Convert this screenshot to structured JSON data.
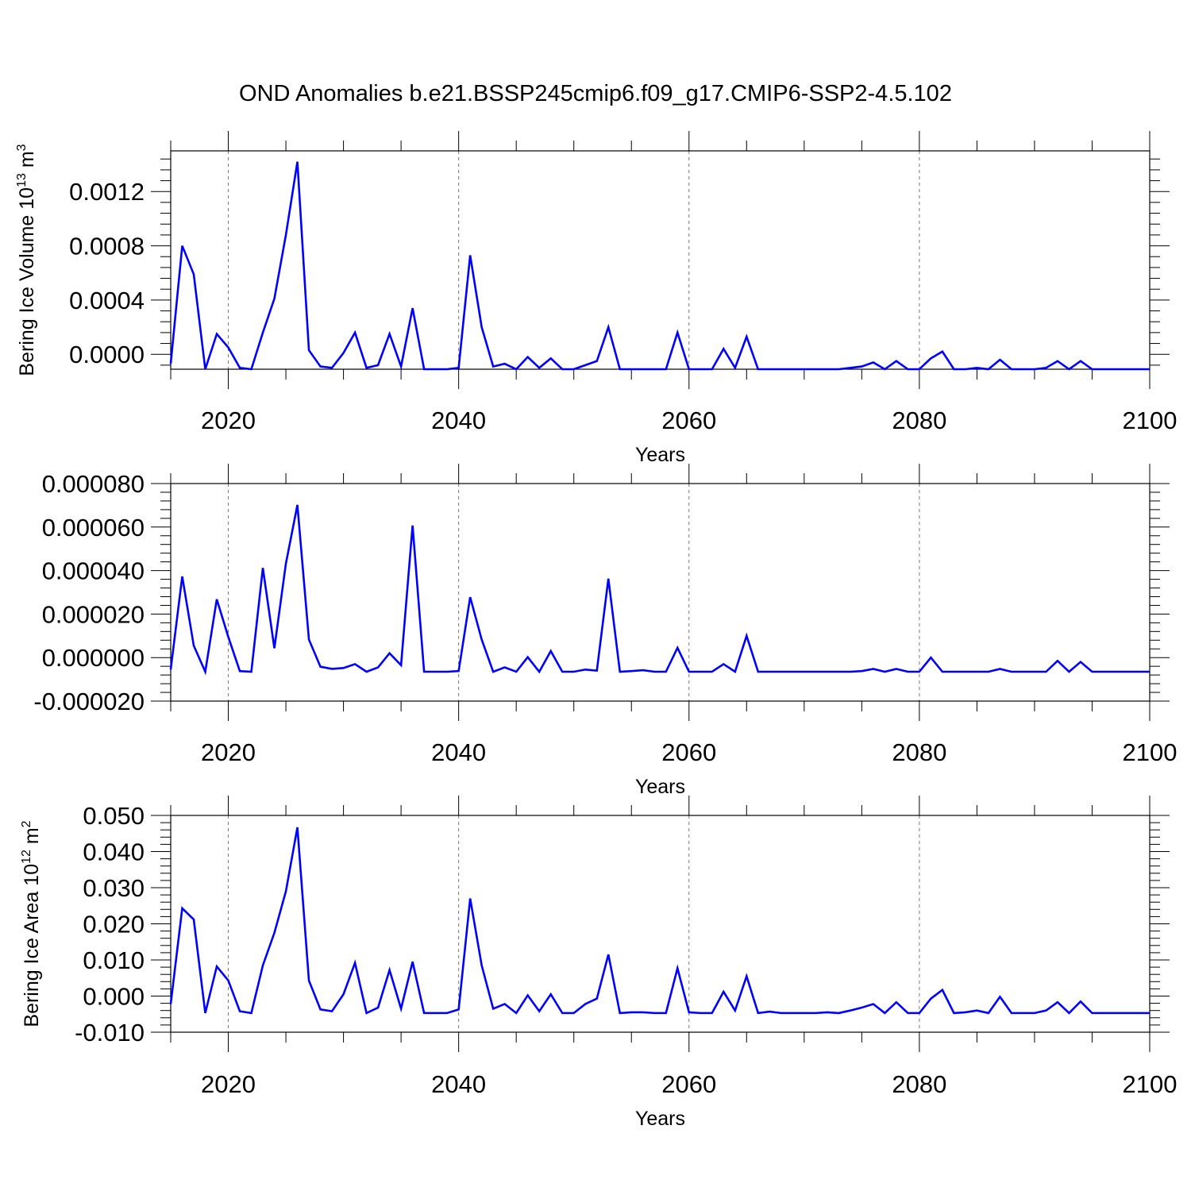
{
  "title": "OND Anomalies b.e21.BSSP245cmip6.f09_g17.CMIP6-SSP2-4.5.102",
  "colors": {
    "line": "#0000ff",
    "axis": "#000000",
    "grid": "#777777",
    "background": "#ffffff"
  },
  "chart_data": [
    {
      "type": "line",
      "xlabel": "Years",
      "ylabel": {
        "base": "Bering Ice Volume 10",
        "exponent": "13",
        "unit": " m",
        "unit_exponent": "3"
      },
      "xlim": [
        2015,
        2100
      ],
      "ylim": [
        -0.00011,
        0.0015
      ],
      "xticks": [
        2020,
        2040,
        2060,
        2080,
        2100
      ],
      "xtick_labels": [
        "2020",
        "2040",
        "2060",
        "2080",
        "2100"
      ],
      "yticks": [
        0.0,
        0.0004,
        0.0008,
        0.0012
      ],
      "ytick_labels": [
        "0.0000",
        "0.0004",
        "0.0008",
        "0.0012"
      ],
      "grid": "vertical dashed at major x ticks",
      "x": [
        2015,
        2016,
        2017,
        2018,
        2019,
        2020,
        2021,
        2022,
        2023,
        2024,
        2025,
        2026,
        2027,
        2028,
        2029,
        2030,
        2031,
        2032,
        2033,
        2034,
        2035,
        2036,
        2037,
        2038,
        2039,
        2040,
        2041,
        2042,
        2043,
        2044,
        2045,
        2046,
        2047,
        2048,
        2049,
        2050,
        2051,
        2052,
        2053,
        2054,
        2055,
        2056,
        2057,
        2058,
        2059,
        2060,
        2061,
        2062,
        2063,
        2064,
        2065,
        2066,
        2067,
        2068,
        2069,
        2070,
        2071,
        2072,
        2073,
        2074,
        2075,
        2076,
        2077,
        2078,
        2079,
        2080,
        2081,
        2082,
        2083,
        2084,
        2085,
        2086,
        2087,
        2088,
        2089,
        2090,
        2091,
        2092,
        2093,
        2094,
        2095,
        2096,
        2097,
        2098,
        2099,
        2100
      ],
      "series": [
        {
          "values": [
            -7e-05,
            0.0008,
            0.00059,
            -0.00011,
            0.00015,
            5e-05,
            -0.0001,
            -0.00011,
            0.00016,
            0.00041,
            0.00088,
            0.00142,
            3e-05,
            -9e-05,
            -0.0001,
            1e-05,
            0.00016,
            -0.0001,
            -8e-05,
            0.00015,
            -9e-05,
            0.00034,
            -0.00011,
            -0.00011,
            -0.00011,
            -0.0001,
            0.00073,
            0.0002,
            -9e-05,
            -7e-05,
            -0.00011,
            -2e-05,
            -0.0001,
            -3e-05,
            -0.00011,
            -0.00011,
            -8e-05,
            -5e-05,
            0.0002,
            -0.00011,
            -0.00011,
            -0.00011,
            -0.00011,
            -0.00011,
            0.00016,
            -0.00011,
            -0.00011,
            -0.00011,
            4e-05,
            -0.0001,
            0.00013,
            -0.00011,
            -0.00011,
            -0.00011,
            -0.00011,
            -0.00011,
            -0.00011,
            -0.00011,
            -0.00011,
            -0.0001,
            -9e-05,
            -6e-05,
            -0.00011,
            -5e-05,
            -0.00011,
            -0.00011,
            -3e-05,
            2e-05,
            -0.00011,
            -0.00011,
            -0.0001,
            -0.00011,
            -4e-05,
            -0.00011,
            -0.00011,
            -0.00011,
            -0.0001,
            -5e-05,
            -0.00011,
            -5e-05,
            -0.00011,
            -0.00011,
            -0.00011,
            -0.00011,
            -0.00011,
            -0.00011
          ]
        }
      ]
    },
    {
      "type": "line",
      "xlabel": "Years",
      "ylabel": null,
      "xlim": [
        2015,
        2100
      ],
      "ylim": [
        -2e-05,
        8e-05
      ],
      "xticks": [
        2020,
        2040,
        2060,
        2080,
        2100
      ],
      "xtick_labels": [
        "2020",
        "2040",
        "2060",
        "2080",
        "2100"
      ],
      "yticks": [
        -2e-05,
        0.0,
        2e-05,
        4e-05,
        6e-05,
        8e-05
      ],
      "ytick_labels": [
        "-0.000020",
        "0.000000",
        "0.000020",
        "0.000040",
        "0.000060",
        "0.000080"
      ],
      "grid": "vertical dashed at major x ticks",
      "x": [
        2015,
        2016,
        2017,
        2018,
        2019,
        2020,
        2021,
        2022,
        2023,
        2024,
        2025,
        2026,
        2027,
        2028,
        2029,
        2030,
        2031,
        2032,
        2033,
        2034,
        2035,
        2036,
        2037,
        2038,
        2039,
        2040,
        2041,
        2042,
        2043,
        2044,
        2045,
        2046,
        2047,
        2048,
        2049,
        2050,
        2051,
        2052,
        2053,
        2054,
        2055,
        2056,
        2057,
        2058,
        2059,
        2060,
        2061,
        2062,
        2063,
        2064,
        2065,
        2066,
        2067,
        2068,
        2069,
        2070,
        2071,
        2072,
        2073,
        2074,
        2075,
        2076,
        2077,
        2078,
        2079,
        2080,
        2081,
        2082,
        2083,
        2084,
        2085,
        2086,
        2087,
        2088,
        2089,
        2090,
        2091,
        2092,
        2093,
        2094,
        2095,
        2096,
        2097,
        2098,
        2099,
        2100
      ],
      "series": [
        {
          "values": [
            -5.5e-06,
            3.73e-05,
            5.5e-06,
            -6.5e-06,
            2.68e-05,
            9.5e-06,
            -6.2e-06,
            -6.5e-06,
            4.12e-05,
            4.3e-06,
            4.32e-05,
            7.02e-05,
            8.3e-06,
            -4.2e-06,
            -5.2e-06,
            -4.8e-06,
            -3e-06,
            -6.5e-06,
            -4.5e-06,
            2e-06,
            -3.5e-06,
            6.07e-05,
            -6.5e-06,
            -6.5e-06,
            -6.5e-06,
            -6.2e-06,
            2.78e-05,
            8.3e-06,
            -6.5e-06,
            -4.5e-06,
            -6.5e-06,
            2e-07,
            -6.5e-06,
            3e-06,
            -6.5e-06,
            -6.5e-06,
            -5.5e-06,
            -6e-06,
            3.63e-05,
            -6.5e-06,
            -6.2e-06,
            -5.8e-06,
            -6.5e-06,
            -6.5e-06,
            4.5e-06,
            -6.5e-06,
            -6.5e-06,
            -6.5e-06,
            -3e-06,
            -6.5e-06,
            1e-05,
            -6.5e-06,
            -6.5e-06,
            -6.5e-06,
            -6.5e-06,
            -6.5e-06,
            -6.5e-06,
            -6.5e-06,
            -6.5e-06,
            -6.5e-06,
            -6.2e-06,
            -5.2e-06,
            -6.5e-06,
            -5.2e-06,
            -6.5e-06,
            -6.5e-06,
            0.0,
            -6.5e-06,
            -6.5e-06,
            -6.5e-06,
            -6.5e-06,
            -6.5e-06,
            -5.2e-06,
            -6.5e-06,
            -6.5e-06,
            -6.5e-06,
            -6.5e-06,
            -1.5e-06,
            -6.5e-06,
            -2e-06,
            -6.5e-06,
            -6.5e-06,
            -6.5e-06,
            -6.5e-06,
            -6.5e-06,
            -6.5e-06
          ]
        }
      ]
    },
    {
      "type": "line",
      "xlabel": "Years",
      "ylabel": {
        "base": "Bering Ice Area 10",
        "exponent": "12",
        "unit": " m",
        "unit_exponent": "2"
      },
      "xlim": [
        2015,
        2100
      ],
      "ylim": [
        -0.01,
        0.05
      ],
      "xticks": [
        2020,
        2040,
        2060,
        2080,
        2100
      ],
      "xtick_labels": [
        "2020",
        "2040",
        "2060",
        "2080",
        "2100"
      ],
      "yticks": [
        -0.01,
        0.0,
        0.01,
        0.02,
        0.03,
        0.04,
        0.05
      ],
      "ytick_labels": [
        "-0.010",
        "0.000",
        "0.010",
        "0.020",
        "0.030",
        "0.040",
        "0.050"
      ],
      "grid": "vertical dashed at major x ticks",
      "x": [
        2015,
        2016,
        2017,
        2018,
        2019,
        2020,
        2021,
        2022,
        2023,
        2024,
        2025,
        2026,
        2027,
        2028,
        2029,
        2030,
        2031,
        2032,
        2033,
        2034,
        2035,
        2036,
        2037,
        2038,
        2039,
        2040,
        2041,
        2042,
        2043,
        2044,
        2045,
        2046,
        2047,
        2048,
        2049,
        2050,
        2051,
        2052,
        2053,
        2054,
        2055,
        2056,
        2057,
        2058,
        2059,
        2060,
        2061,
        2062,
        2063,
        2064,
        2065,
        2066,
        2067,
        2068,
        2069,
        2070,
        2071,
        2072,
        2073,
        2074,
        2075,
        2076,
        2077,
        2078,
        2079,
        2080,
        2081,
        2082,
        2083,
        2084,
        2085,
        2086,
        2087,
        2088,
        2089,
        2090,
        2091,
        2092,
        2093,
        2094,
        2095,
        2096,
        2097,
        2098,
        2099,
        2100
      ],
      "series": [
        {
          "values": [
            -0.0022,
            0.0243,
            0.0212,
            -0.0047,
            0.0082,
            0.0043,
            -0.0042,
            -0.0047,
            0.0085,
            0.0175,
            0.029,
            0.0467,
            0.0043,
            -0.0037,
            -0.0042,
            0.0005,
            0.0092,
            -0.0047,
            -0.0032,
            0.0072,
            -0.0035,
            0.0095,
            -0.0047,
            -0.0047,
            -0.0047,
            -0.0037,
            0.027,
            0.0085,
            -0.0035,
            -0.0022,
            -0.0047,
            0.0002,
            -0.0042,
            0.0005,
            -0.0047,
            -0.0047,
            -0.0022,
            -0.0007,
            0.0115,
            -0.0047,
            -0.0045,
            -0.0045,
            -0.0047,
            -0.0047,
            0.0077,
            -0.0045,
            -0.0047,
            -0.0047,
            0.0012,
            -0.004,
            0.0055,
            -0.0047,
            -0.0043,
            -0.0047,
            -0.0047,
            -0.0047,
            -0.0047,
            -0.0045,
            -0.0047,
            -0.004,
            -0.0032,
            -0.0022,
            -0.0047,
            -0.0017,
            -0.0047,
            -0.0047,
            -0.0007,
            0.0017,
            -0.0047,
            -0.0045,
            -0.004,
            -0.0047,
            -0.0002,
            -0.0047,
            -0.0047,
            -0.0047,
            -0.004,
            -0.0017,
            -0.0047,
            -0.0015,
            -0.0047,
            -0.0047,
            -0.0047,
            -0.0047,
            -0.0047,
            -0.0047
          ]
        }
      ]
    }
  ]
}
